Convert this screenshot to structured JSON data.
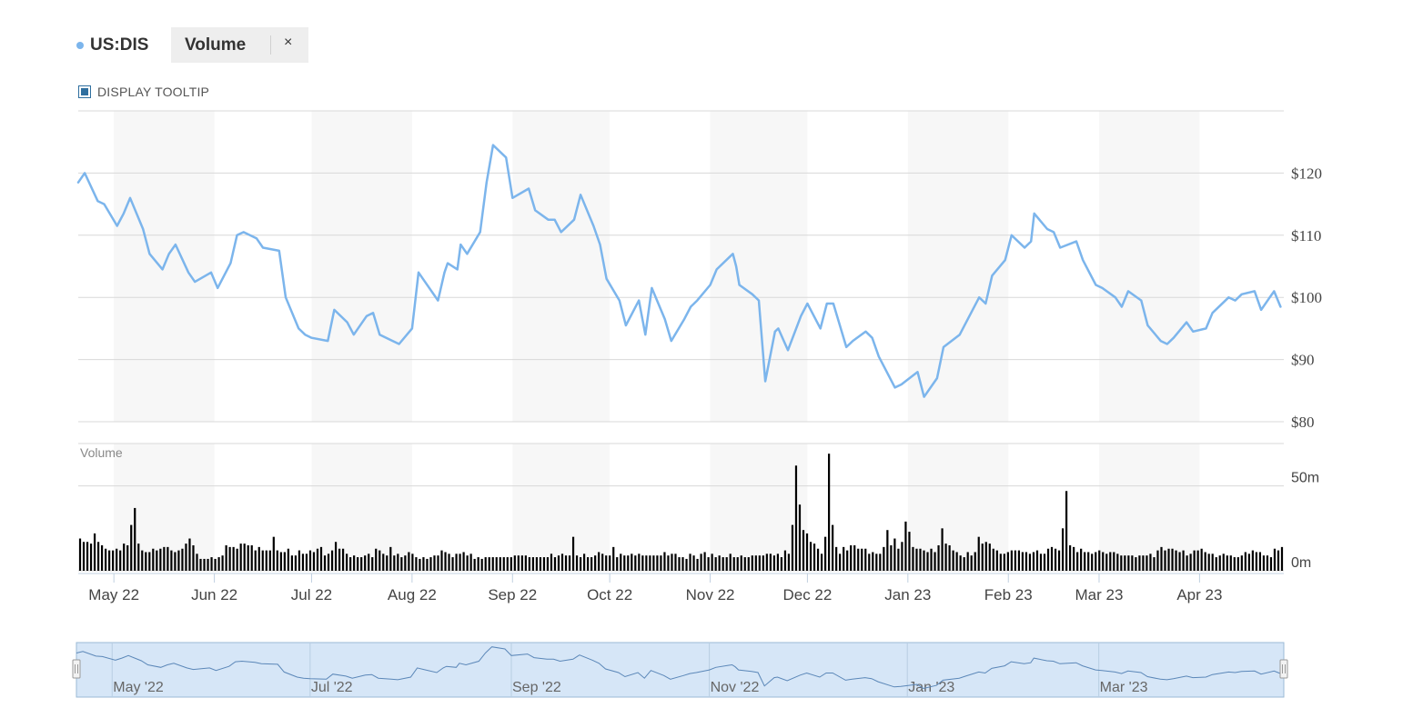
{
  "legend": {
    "series_label": "US:DIS",
    "volume_label": "Volume",
    "close_glyph": "×"
  },
  "tooltip_toggle": {
    "label": "DISPLAY TOOLTIP",
    "checked": true
  },
  "colors": {
    "price_line": "#7cb5ec",
    "volume_bar": "#000000",
    "band": "#f7f7f7",
    "grid": "#d8d8d8",
    "navigator_fill": "#d6e6f7",
    "navigator_border": "#9bbad6",
    "navigator_line": "#5b87b8"
  },
  "chart_data": {
    "type": "line",
    "title": "",
    "series": [
      {
        "name": "US:DIS",
        "kind": "price",
        "x": [
          "2022-04-20",
          "2022-04-22",
          "2022-04-26",
          "2022-04-28",
          "2022-05-02",
          "2022-05-04",
          "2022-05-06",
          "2022-05-10",
          "2022-05-12",
          "2022-05-16",
          "2022-05-18",
          "2022-05-20",
          "2022-05-24",
          "2022-05-26",
          "2022-05-31",
          "2022-06-02",
          "2022-06-06",
          "2022-06-08",
          "2022-06-10",
          "2022-06-14",
          "2022-06-16",
          "2022-06-21",
          "2022-06-23",
          "2022-06-27",
          "2022-06-29",
          "2022-07-01",
          "2022-07-06",
          "2022-07-08",
          "2022-07-12",
          "2022-07-14",
          "2022-07-18",
          "2022-07-20",
          "2022-07-22",
          "2022-07-26",
          "2022-07-28",
          "2022-08-01",
          "2022-08-03",
          "2022-08-05",
          "2022-08-09",
          "2022-08-11",
          "2022-08-12",
          "2022-08-15",
          "2022-08-16",
          "2022-08-18",
          "2022-08-22",
          "2022-08-24",
          "2022-08-26",
          "2022-08-30",
          "2022-09-01",
          "2022-09-06",
          "2022-09-08",
          "2022-09-12",
          "2022-09-14",
          "2022-09-16",
          "2022-09-20",
          "2022-09-22",
          "2022-09-26",
          "2022-09-28",
          "2022-09-30",
          "2022-10-04",
          "2022-10-06",
          "2022-10-10",
          "2022-10-12",
          "2022-10-14",
          "2022-10-18",
          "2022-10-20",
          "2022-10-24",
          "2022-10-26",
          "2022-10-28",
          "2022-11-01",
          "2022-11-03",
          "2022-11-07",
          "2022-11-08",
          "2022-11-09",
          "2022-11-10",
          "2022-11-14",
          "2022-11-16",
          "2022-11-18",
          "2022-11-21",
          "2022-11-22",
          "2022-11-25",
          "2022-11-29",
          "2022-12-01",
          "2022-12-05",
          "2022-12-07",
          "2022-12-09",
          "2022-12-13",
          "2022-12-15",
          "2022-12-19",
          "2022-12-21",
          "2022-12-23",
          "2022-12-28",
          "2022-12-30",
          "2023-01-04",
          "2023-01-06",
          "2023-01-10",
          "2023-01-12",
          "2023-01-17",
          "2023-01-19",
          "2023-01-23",
          "2023-01-25",
          "2023-01-27",
          "2023-01-31",
          "2023-02-02",
          "2023-02-06",
          "2023-02-08",
          "2023-02-09",
          "2023-02-13",
          "2023-02-15",
          "2023-02-17",
          "2023-02-22",
          "2023-02-24",
          "2023-02-28",
          "2023-03-02",
          "2023-03-06",
          "2023-03-08",
          "2023-03-10",
          "2023-03-14",
          "2023-03-16",
          "2023-03-20",
          "2023-03-22",
          "2023-03-24",
          "2023-03-28",
          "2023-03-30",
          "2023-04-03",
          "2023-04-05",
          "2023-04-10",
          "2023-04-12",
          "2023-04-14",
          "2023-04-18",
          "2023-04-20",
          "2023-04-24",
          "2023-04-26"
        ],
        "y": [
          118.5,
          120.0,
          115.5,
          115.0,
          111.5,
          113.5,
          116.0,
          111.0,
          107.0,
          104.5,
          107.0,
          108.5,
          104.0,
          102.5,
          104.0,
          101.5,
          105.5,
          110.0,
          110.5,
          109.5,
          108.0,
          107.5,
          100.0,
          95.0,
          94.0,
          93.5,
          93.0,
          98.0,
          96.0,
          94.0,
          97.0,
          97.5,
          94.0,
          93.0,
          92.5,
          95.0,
          104.0,
          102.5,
          99.5,
          104.0,
          105.5,
          104.5,
          108.5,
          107.0,
          110.5,
          118.5,
          124.5,
          122.5,
          116.0,
          117.5,
          114.0,
          112.5,
          112.5,
          110.5,
          112.5,
          116.5,
          111.5,
          108.5,
          103.0,
          99.5,
          95.5,
          99.5,
          94.0,
          101.5,
          96.5,
          93.0,
          96.5,
          98.5,
          99.5,
          102.0,
          104.5,
          106.5,
          107.0,
          105.0,
          102.0,
          100.5,
          99.5,
          86.5,
          94.5,
          95.0,
          91.5,
          97.0,
          99.0,
          95.0,
          99.0,
          99.0,
          92.0,
          93.0,
          94.5,
          93.5,
          90.5,
          85.5,
          86.0,
          88.0,
          84.0,
          87.0,
          92.0,
          94.0,
          96.0,
          100.0,
          99.0,
          103.5,
          106.0,
          110.0,
          108.0,
          109.0,
          113.5,
          111.0,
          110.5,
          108.0,
          109.0,
          106.0,
          102.0,
          101.5,
          100.0,
          98.5,
          101.0,
          99.5,
          95.5,
          93.0,
          92.5,
          93.5,
          96.0,
          94.5,
          95.0,
          97.5,
          100.0,
          99.5,
          100.5,
          101.0,
          98.0,
          101.0,
          98.5
        ]
      },
      {
        "name": "Volume",
        "kind": "volume",
        "values": [
          19,
          17,
          17,
          16,
          22,
          17,
          15,
          13,
          12,
          12,
          13,
          12,
          16,
          15,
          27,
          37,
          16,
          12,
          11,
          11,
          13,
          12,
          13,
          14,
          14,
          12,
          11,
          12,
          13,
          16,
          19,
          15,
          10,
          7,
          7,
          7,
          8,
          7,
          8,
          9,
          15,
          14,
          14,
          13,
          16,
          16,
          15,
          15,
          12,
          14,
          12,
          12,
          12,
          20,
          12,
          11,
          11,
          13,
          9,
          9,
          12,
          10,
          10,
          12,
          11,
          13,
          14,
          9,
          10,
          12,
          17,
          13,
          13,
          10,
          8,
          9,
          8,
          8,
          9,
          10,
          8,
          13,
          12,
          10,
          9,
          14,
          9,
          10,
          8,
          9,
          11,
          10,
          8,
          7,
          8,
          7,
          8,
          9,
          9,
          12,
          11,
          10,
          8,
          10,
          10,
          11,
          9,
          10,
          7,
          8,
          7,
          8,
          8,
          8,
          8,
          8,
          8,
          8,
          8,
          9,
          9,
          9,
          9,
          8,
          8,
          8,
          8,
          8,
          8,
          10,
          8,
          9,
          10,
          9,
          9,
          20,
          9,
          8,
          10,
          8,
          8,
          9,
          11,
          10,
          9,
          9,
          14,
          8,
          10,
          9,
          9,
          10,
          9,
          10,
          9,
          9,
          9,
          9,
          9,
          9,
          11,
          9,
          10,
          10,
          8,
          8,
          7,
          10,
          9,
          7,
          10,
          11,
          8,
          10,
          8,
          9,
          8,
          8,
          10,
          8,
          8,
          9,
          8,
          8,
          9,
          9,
          9,
          9,
          10,
          10,
          9,
          10,
          8,
          12,
          10,
          27,
          62,
          39,
          24,
          22,
          17,
          16,
          13,
          10,
          20,
          69,
          27,
          14,
          10,
          14,
          12,
          15,
          15,
          13,
          13,
          13,
          10,
          11,
          10,
          10,
          14,
          24,
          15,
          19,
          13,
          17,
          29,
          23,
          14,
          13,
          13,
          12,
          11,
          13,
          11,
          15,
          25,
          16,
          15,
          12,
          11,
          9,
          8,
          11,
          9,
          11,
          20,
          16,
          17,
          16,
          13,
          12,
          10,
          10,
          11,
          12,
          12,
          12,
          11,
          11,
          10,
          11,
          12,
          10,
          10,
          13,
          14,
          13,
          12,
          25,
          47,
          15,
          14,
          11,
          13,
          11,
          11,
          10,
          11,
          12,
          11,
          10,
          11,
          11,
          10,
          9,
          9,
          9,
          9,
          8,
          9,
          9,
          9,
          10,
          8,
          12,
          14,
          12,
          13,
          13,
          12,
          11,
          12,
          9,
          10,
          12,
          12,
          13,
          11,
          10,
          10,
          8,
          9,
          10,
          9,
          9,
          8,
          8,
          9,
          11,
          10,
          12,
          11,
          11,
          9,
          9,
          8,
          13,
          12,
          14
        ]
      }
    ],
    "y_axis": {
      "ticks": [
        "$80",
        "$90",
        "$100",
        "$110",
        "$120"
      ],
      "ylim": [
        80,
        130
      ]
    },
    "volume_axis": {
      "title": "Volume",
      "ticks": [
        "0m",
        "50m"
      ],
      "ylim": [
        0,
        75
      ]
    },
    "x_axis": {
      "ticks": [
        "May 22",
        "Jun 22",
        "Jul 22",
        "Aug 22",
        "Sep 22",
        "Oct 22",
        "Nov 22",
        "Dec 22",
        "Jan 23",
        "Feb 23",
        "Mar 23",
        "Apr 23"
      ],
      "range": [
        "2022-04-20",
        "2023-04-27"
      ]
    },
    "navigator": {
      "ticks": [
        "May '22",
        "Jul '22",
        "Sep '22",
        "Nov '22",
        "Jan '23",
        "Mar '23"
      ]
    },
    "grid": true,
    "legend_placement": "top-left"
  }
}
